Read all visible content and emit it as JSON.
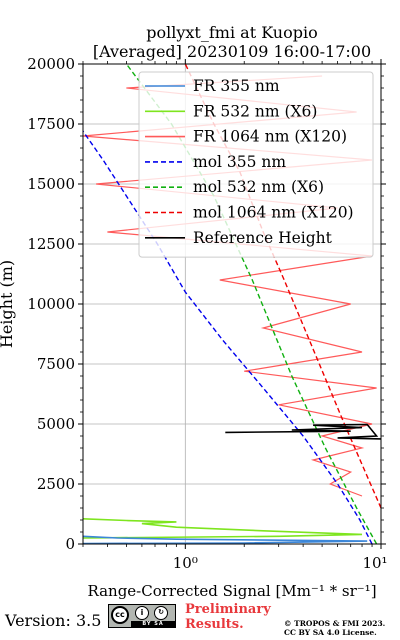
{
  "chart_data": {
    "type": "line",
    "title": "pollyxt_fmi at Kuopio",
    "subtitle": "[Averaged] 20230109 16:00-17:00",
    "xlabel": "Range-Corrected Signal [Mm⁻¹ * sr⁻¹]",
    "ylabel": "Height (m)",
    "xscale": "log",
    "xlim": [
      0.3,
      10
    ],
    "ylim": [
      0,
      20000
    ],
    "x_tick_labels": [
      "10⁰",
      "10¹"
    ],
    "y_ticks": [
      0,
      2500,
      5000,
      7500,
      10000,
      12500,
      15000,
      17500,
      20000
    ],
    "y_tick_labels": [
      "0",
      "2500",
      "5000",
      "7500",
      "10000",
      "12500",
      "15000",
      "17500",
      "20000"
    ],
    "grid": true,
    "legend_position": "top-right",
    "series": [
      {
        "name": "FR 355 nm",
        "color": "#3b86d8",
        "style": "solid",
        "points": [
          [
            0.3,
            20
          ],
          [
            2.0,
            40
          ],
          [
            8.5,
            120
          ],
          [
            3.0,
            160
          ],
          [
            0.9,
            200
          ],
          [
            0.45,
            250
          ],
          [
            0.3,
            320
          ]
        ]
      },
      {
        "name": "FR 532 nm (X6)",
        "color": "#7ee51f",
        "style": "solid",
        "points": [
          [
            0.3,
            250
          ],
          [
            3.0,
            320
          ],
          [
            8.0,
            400
          ],
          [
            2.5,
            550
          ],
          [
            0.9,
            700
          ],
          [
            0.6,
            850
          ],
          [
            0.9,
            920
          ],
          [
            0.5,
            980
          ],
          [
            0.3,
            1050
          ]
        ]
      },
      {
        "name": "FR 1064 nm (X120)",
        "color": "#ff5a5a",
        "style": "solid",
        "note": "noisy profile spanning x 0.3-10 from 2000 m to 19500 m",
        "points": [
          [
            8.0,
            2000
          ],
          [
            5.5,
            2500
          ],
          [
            7.0,
            3000
          ],
          [
            4.5,
            3500
          ],
          [
            8.0,
            4000
          ],
          [
            5.0,
            4500
          ],
          [
            9.0,
            5000
          ],
          [
            3.0,
            5800
          ],
          [
            9.5,
            6500
          ],
          [
            2.0,
            7200
          ],
          [
            8.0,
            8000
          ],
          [
            2.5,
            9000
          ],
          [
            7.0,
            10000
          ],
          [
            1.5,
            11000
          ],
          [
            9.0,
            12000
          ],
          [
            0.4,
            13000
          ],
          [
            6.0,
            14000
          ],
          [
            0.35,
            15000
          ],
          [
            9.0,
            16000
          ],
          [
            0.3,
            17000
          ],
          [
            7.5,
            18000
          ],
          [
            0.5,
            19000
          ],
          [
            5.0,
            19500
          ]
        ]
      },
      {
        "name": "mol 355 nm",
        "color": "#0000ee",
        "style": "dashed",
        "points": [
          [
            9.0,
            0
          ],
          [
            7.8,
            1000
          ],
          [
            6.0,
            2500
          ],
          [
            4.0,
            4500
          ],
          [
            2.5,
            6500
          ],
          [
            1.55,
            8500
          ],
          [
            1.0,
            10500
          ],
          [
            0.72,
            12500
          ],
          [
            0.5,
            14500
          ],
          [
            0.38,
            16000
          ],
          [
            0.3,
            17200
          ]
        ]
      },
      {
        "name": "mol 532 nm (X6)",
        "color": "#10b010",
        "style": "dashed",
        "points": [
          [
            9.5,
            0
          ],
          [
            7.5,
            1500
          ],
          [
            5.2,
            4000
          ],
          [
            3.5,
            7000
          ],
          [
            2.2,
            11000
          ],
          [
            1.4,
            14500
          ],
          [
            0.85,
            17500
          ],
          [
            0.5,
            20000
          ]
        ]
      },
      {
        "name": "mol 1064 nm (X120)",
        "color": "#ee0000",
        "style": "dashed",
        "points": [
          [
            10.0,
            1500
          ],
          [
            6.5,
            5000
          ],
          [
            4.3,
            8500
          ],
          [
            3.2,
            11000
          ],
          [
            2.5,
            13000
          ],
          [
            1.9,
            15500
          ],
          [
            1.4,
            17500
          ],
          [
            1.0,
            20000
          ]
        ]
      },
      {
        "name": "Reference Height",
        "color": "#000000",
        "style": "solid",
        "note": "noisy black segment within 4400-5000 m",
        "points": [
          [
            1.6,
            4650
          ],
          [
            7.0,
            4700
          ],
          [
            3.5,
            4750
          ],
          [
            8.0,
            4850
          ],
          [
            4.5,
            4950
          ],
          [
            8.5,
            4980
          ],
          [
            9.5,
            4500
          ],
          [
            6.0,
            4420
          ],
          [
            10.0,
            4380
          ]
        ]
      }
    ]
  },
  "footer": {
    "version": "Version: 3.5",
    "preliminary_line1": "Preliminary",
    "preliminary_line2": "Results.",
    "copyright_line1": "© TROPOS & FMI 2023.",
    "copyright_line2": "CC BY SA 4.0 License."
  },
  "cc_badge": {
    "cc": "cc",
    "by": "i",
    "sa": "↻",
    "strip": "BY   SA"
  }
}
